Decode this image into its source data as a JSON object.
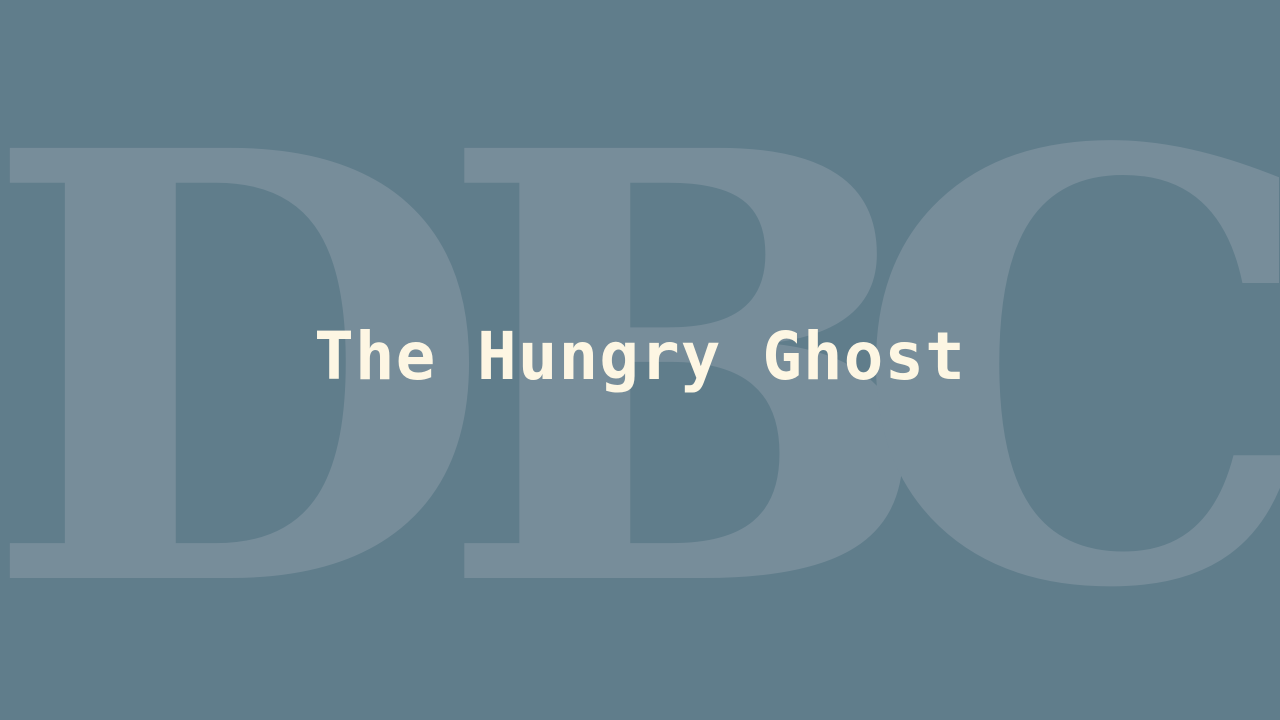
{
  "background": {
    "color": "#607d8b"
  },
  "logo": {
    "letters": [
      "D",
      "B",
      "C"
    ],
    "color": "#778d9a"
  },
  "title": {
    "text": "The Hungry Ghost",
    "color": "#fdf6e3"
  }
}
